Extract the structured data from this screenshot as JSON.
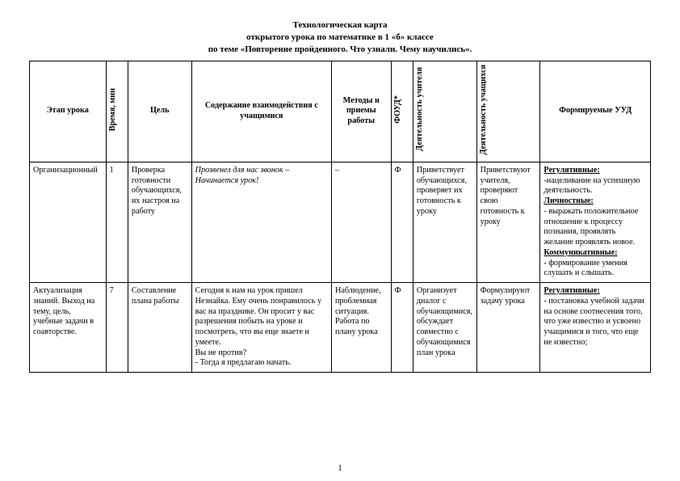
{
  "title": {
    "line1": "Технологическая карта",
    "line2": "открытого урока по математике в 1 «б» классе",
    "line3": "по теме «Повторение пройденного. Что узнали. Чему научились»."
  },
  "headers": {
    "stage": "Этап урока",
    "time": "Время, мин",
    "goal": "Цель",
    "content": "Содержание взаимодействия с учащимися",
    "methods": "Методы и приемы работы",
    "foud": "ФОУД*",
    "teacher": "Деятельность учителя",
    "student": "Деятельность учащихся",
    "uud": "Формируемые УУД"
  },
  "rows": [
    {
      "stage": "Организационный",
      "time": "1",
      "goal": "Проверка готовности обучающихся, их настроя на работу",
      "content_italic": "Прозвенел для нас звонок –\nНачинается урок!",
      "methods": "–",
      "foud": "Ф",
      "teacher": "Приветствует обучающихся, проверяет их готовность к уроку",
      "student": "Приветствуют учителя, проверяют свою готовность к уроку",
      "uud_parts": {
        "h1": "Регулятивные:",
        "t1": "-нацеливание на успешную деятельность.",
        "h2": "Личностные:",
        "t2": "- выражать положительное отношение к процессу познания, проявлять желание проявлять новое.",
        "h3": "Коммуникативные:",
        "t3": "- формирование умения слушать и слышать."
      }
    },
    {
      "stage": "Актуализация знаний. Выход на тему, цель, учебные задачи в соавторстве.",
      "time": "7",
      "goal": "Составление плана работы",
      "content_plain": " Сегодня к нам на урок пришел Незнайка. Ему очень понравилось у вас на празднике. Он просит у вас разрешения побыть на уроке и посмотреть, что вы еще знаете и умеете.\nВы не против?\n- Тогда я предлагаю начать.",
      "methods": "Наблюдение, проблемная ситуация. Работа по плану урока",
      "foud": "Ф",
      "teacher": "Организует диалог с обучающимися, обсуждает совместно с обучающимися план урока",
      "student": "Формулируют задачу урока",
      "uud_parts": {
        "h1": "Регулятивные:",
        "t1": " - постановка учебной задачи на основе соотнесения того, что уже известно и усвоено учащимися и того, что еще не известно;"
      }
    }
  ],
  "page_number": "1"
}
